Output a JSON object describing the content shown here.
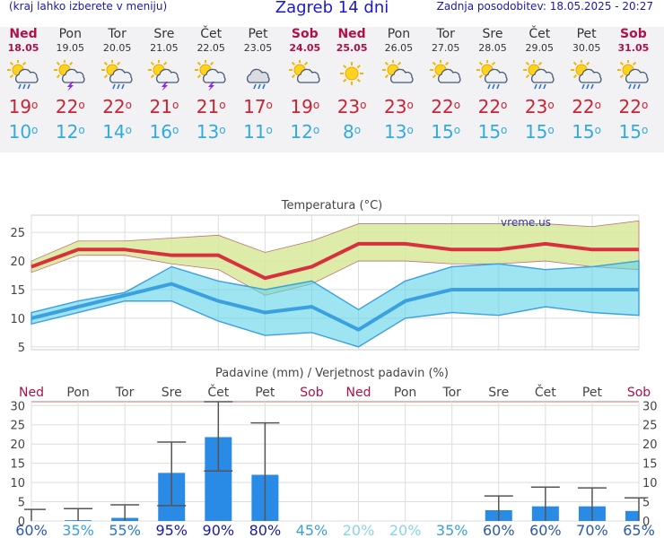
{
  "header": {
    "left_note": "(kraj lahko izberete v meniju)",
    "title": "Zagreb 14 dni",
    "updated": "Zadnja posodobitev: 18.05.2025 - 20:27"
  },
  "days": [
    {
      "name": "Ned",
      "date": "18.05",
      "weekend": true,
      "icon": "sun-cloud-rain-icon",
      "max": "19",
      "min": "10"
    },
    {
      "name": "Pon",
      "date": "19.05",
      "weekend": false,
      "icon": "sun-cloud-thunder-icon",
      "max": "22",
      "min": "12"
    },
    {
      "name": "Tor",
      "date": "20.05",
      "weekend": false,
      "icon": "sun-cloud-rain-icon",
      "max": "22",
      "min": "14"
    },
    {
      "name": "Sre",
      "date": "21.05",
      "weekend": false,
      "icon": "sun-cloud-thunder-icon",
      "max": "21",
      "min": "16"
    },
    {
      "name": "Čet",
      "date": "22.05",
      "weekend": false,
      "icon": "sun-cloud-thunder-icon",
      "max": "21",
      "min": "13"
    },
    {
      "name": "Pet",
      "date": "23.05",
      "weekend": false,
      "icon": "cloud-rain-icon",
      "max": "17",
      "min": "11"
    },
    {
      "name": "Sob",
      "date": "24.05",
      "weekend": true,
      "icon": "sun-cloud-icon",
      "max": "19",
      "min": "12"
    },
    {
      "name": "Ned",
      "date": "25.05",
      "weekend": true,
      "icon": "sun-icon",
      "max": "23",
      "min": "8"
    },
    {
      "name": "Pon",
      "date": "26.05",
      "weekend": false,
      "icon": "sun-cloud-icon",
      "max": "23",
      "min": "13"
    },
    {
      "name": "Tor",
      "date": "27.05",
      "weekend": false,
      "icon": "sun-cloud-icon",
      "max": "22",
      "min": "15"
    },
    {
      "name": "Sre",
      "date": "28.05",
      "weekend": false,
      "icon": "sun-cloud-rain-icon",
      "max": "22",
      "min": "15"
    },
    {
      "name": "Čet",
      "date": "29.05",
      "weekend": false,
      "icon": "sun-cloud-rain-icon",
      "max": "23",
      "min": "15"
    },
    {
      "name": "Pet",
      "date": "30.05",
      "weekend": false,
      "icon": "sun-cloud-rain-icon",
      "max": "22",
      "min": "15"
    },
    {
      "name": "Sob",
      "date": "31.05",
      "weekend": true,
      "icon": "sun-cloud-rain-icon",
      "max": "22",
      "min": "15"
    }
  ],
  "chart_data": [
    {
      "type": "line",
      "title": "Temperatura (°C)",
      "watermark": "vreme.us",
      "categories": [
        "18.05",
        "19.05",
        "20.05",
        "21.05",
        "22.05",
        "23.05",
        "24.05",
        "25.05",
        "26.05",
        "27.05",
        "28.05",
        "29.05",
        "30.05",
        "31.05"
      ],
      "ylim": [
        4.5,
        28
      ],
      "yticks": [
        5,
        10,
        15,
        20,
        25
      ],
      "grid": true,
      "series": [
        {
          "values": [
            19,
            22,
            22,
            21,
            21,
            17,
            19,
            23,
            23,
            22,
            22,
            23,
            22,
            22
          ],
          "band_low": [
            18,
            21,
            21,
            19.5,
            18.5,
            14,
            16,
            20,
            20,
            19.5,
            19.5,
            20,
            19,
            18.5
          ],
          "band_high": [
            20,
            23.5,
            23.5,
            24,
            24.5,
            21.5,
            23.5,
            26.5,
            26.5,
            26.5,
            26.5,
            26.5,
            26,
            27
          ],
          "color": "#d8303c"
        },
        {
          "values": [
            10,
            12,
            14,
            16,
            13,
            11,
            12,
            8,
            13,
            15,
            15,
            15,
            15,
            15
          ],
          "band_low": [
            9,
            11,
            13,
            13,
            9.5,
            7,
            7.5,
            5,
            10,
            11,
            10.5,
            12,
            11,
            10.5
          ],
          "band_high": [
            11,
            13,
            14.5,
            19,
            16.5,
            15,
            16.5,
            11.5,
            16.5,
            19,
            19.5,
            18.5,
            19,
            20
          ],
          "color": "#3aa0e0"
        }
      ]
    },
    {
      "type": "bar",
      "title": "Padavine (mm) / Verjetnost padavin (%)",
      "categories": [
        "Ned",
        "Pon",
        "Tor",
        "Sre",
        "Čet",
        "Pet",
        "Sob",
        "Ned",
        "Pon",
        "Tor",
        "Sre",
        "Čet",
        "Pet",
        "Sob"
      ],
      "weekend": [
        true,
        false,
        false,
        false,
        false,
        false,
        true,
        true,
        false,
        false,
        false,
        false,
        false,
        true
      ],
      "ylim": [
        0,
        31
      ],
      "yticks": [
        0,
        5,
        10,
        15,
        20,
        25,
        30
      ],
      "values": [
        0,
        0.2,
        0.8,
        12.5,
        21.8,
        12,
        0,
        0,
        0,
        0,
        2.8,
        3.8,
        3.8,
        2.6
      ],
      "err_low": [
        0,
        0,
        0,
        4,
        13,
        0,
        0,
        0,
        0,
        0,
        0,
        0,
        0,
        0
      ],
      "err_high": [
        3,
        3.2,
        4.2,
        20.5,
        31,
        25.5,
        0,
        0,
        0,
        0,
        6.5,
        8.8,
        8.6,
        6
      ],
      "probability": [
        "60%",
        "35%",
        "55%",
        "95%",
        "90%",
        "80%",
        "45%",
        "20%",
        "20%",
        "35%",
        "60%",
        "60%",
        "70%",
        "65%"
      ],
      "probability_color": [
        "#2a57b0",
        "#3aa0d8",
        "#2a7ac8",
        "#1a1aaa",
        "#1a1aaa",
        "#1a1aaa",
        "#3aa0d8",
        "#88d4ee",
        "#88d4ee",
        "#3aa0d8",
        "#2a57b0",
        "#2a57b0",
        "#2a57b0",
        "#2a57b0"
      ]
    }
  ]
}
